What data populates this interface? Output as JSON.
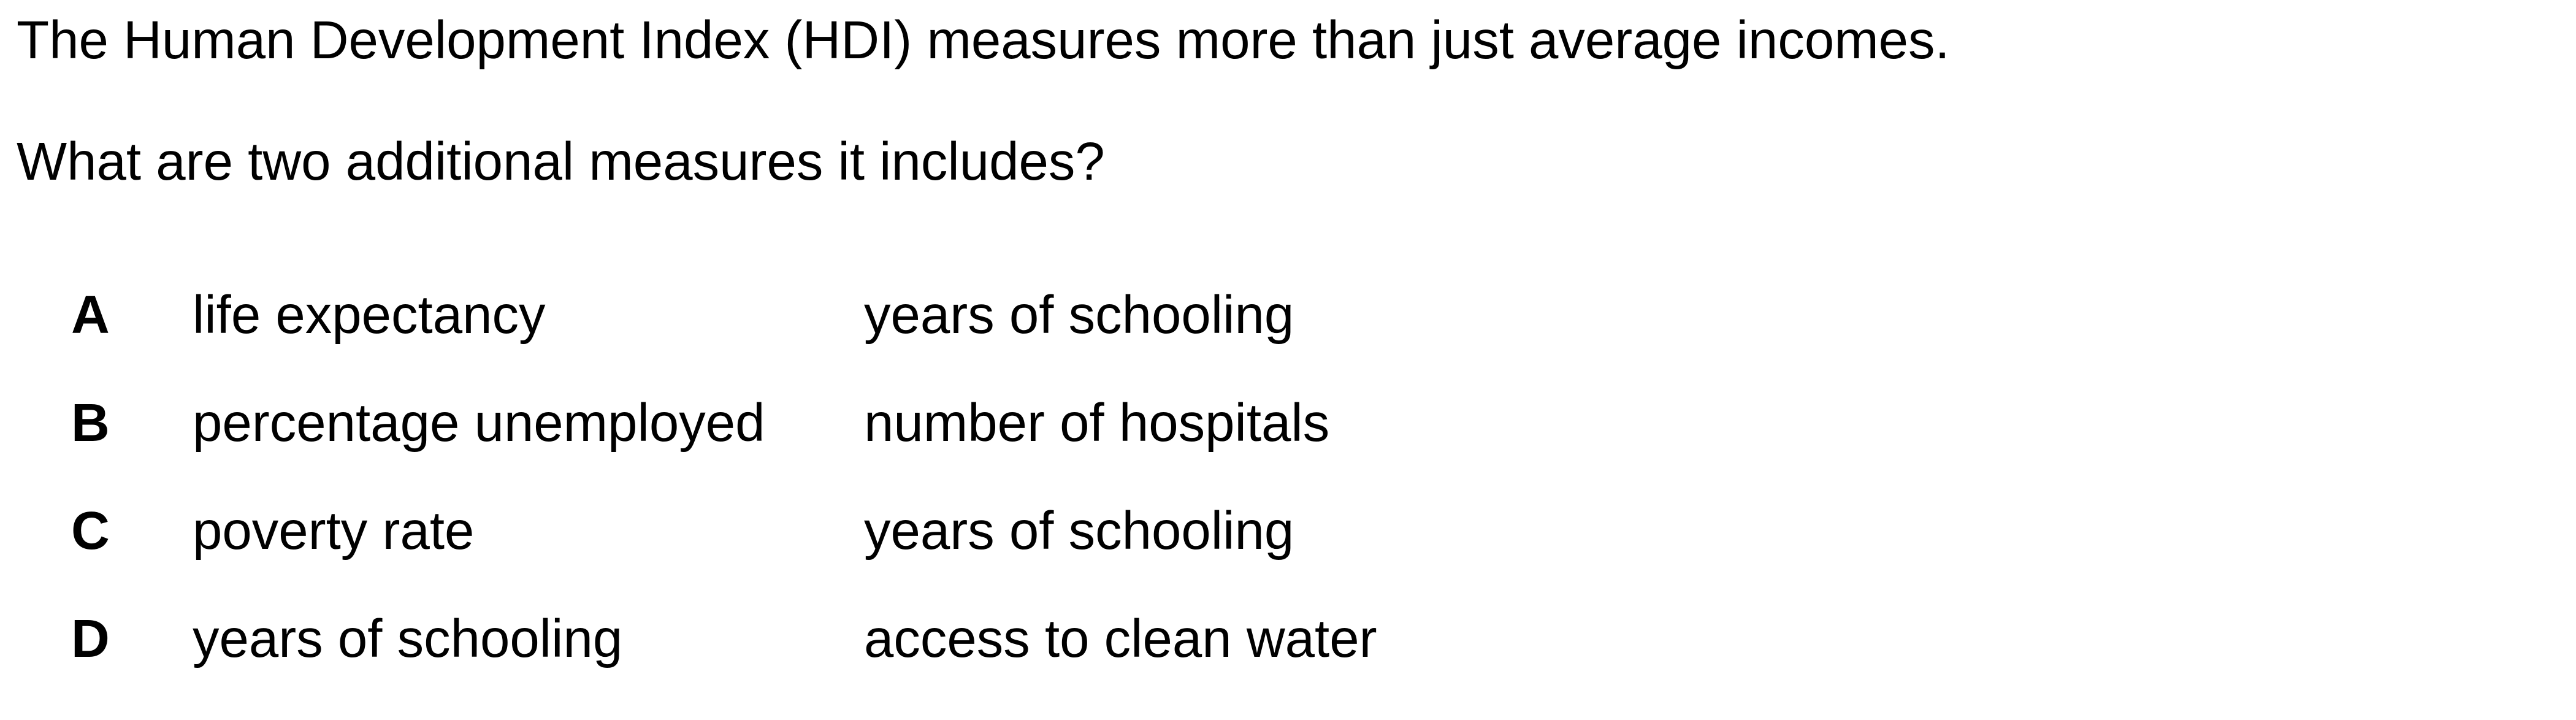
{
  "question": {
    "stem_line_1": "The Human Development Index (HDI) measures more than just average incomes.",
    "stem_line_2": "What are two additional measures it includes?"
  },
  "options": [
    {
      "letter": "A",
      "first": "life expectancy",
      "second": "years of schooling"
    },
    {
      "letter": "B",
      "first": "percentage unemployed",
      "second": "number of hospitals"
    },
    {
      "letter": "C",
      "first": "poverty rate",
      "second": "years of schooling"
    },
    {
      "letter": "D",
      "first": "years of schooling",
      "second": "access to clean water"
    }
  ]
}
